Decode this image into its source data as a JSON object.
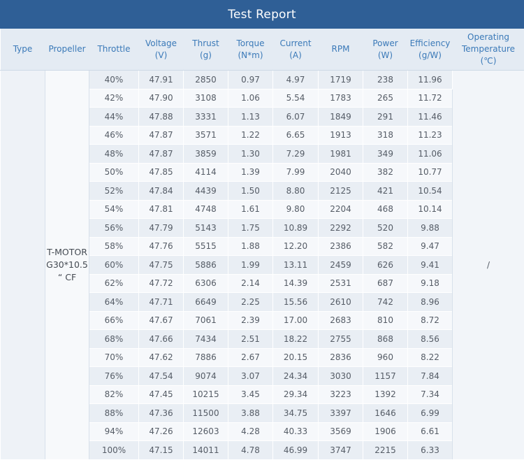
{
  "title": "Test Report",
  "headers": {
    "type": "Type",
    "propeller": "Propeller",
    "throttle": "Throttle",
    "voltage": [
      "Voltage",
      "(V)"
    ],
    "thrust": [
      "Thrust",
      "(g)"
    ],
    "torque": [
      "Torque",
      "(N*m)"
    ],
    "current": [
      "Current",
      "(A)"
    ],
    "rpm": "RPM",
    "power": [
      "Power",
      "(W)"
    ],
    "efficiency": [
      "Efficiency",
      "(g/W)"
    ],
    "temperature": [
      "Operating",
      "Temperature",
      "(℃)"
    ]
  },
  "type_value": "",
  "propeller_value": [
    "T-MOTOR",
    "G30*10.5",
    "“ CF"
  ],
  "temperature_value": "/",
  "rows": [
    [
      "40%",
      "47.91",
      "2850",
      "0.97",
      "4.97",
      "1719",
      "238",
      "11.96"
    ],
    [
      "42%",
      "47.90",
      "3108",
      "1.06",
      "5.54",
      "1783",
      "265",
      "11.72"
    ],
    [
      "44%",
      "47.88",
      "3331",
      "1.13",
      "6.07",
      "1849",
      "291",
      "11.46"
    ],
    [
      "46%",
      "47.87",
      "3571",
      "1.22",
      "6.65",
      "1913",
      "318",
      "11.23"
    ],
    [
      "48%",
      "47.87",
      "3859",
      "1.30",
      "7.29",
      "1981",
      "349",
      "11.06"
    ],
    [
      "50%",
      "47.85",
      "4114",
      "1.39",
      "7.99",
      "2040",
      "382",
      "10.77"
    ],
    [
      "52%",
      "47.84",
      "4439",
      "1.50",
      "8.80",
      "2125",
      "421",
      "10.54"
    ],
    [
      "54%",
      "47.81",
      "4748",
      "1.61",
      "9.80",
      "2204",
      "468",
      "10.14"
    ],
    [
      "56%",
      "47.79",
      "5143",
      "1.75",
      "10.89",
      "2292",
      "520",
      "9.88"
    ],
    [
      "58%",
      "47.76",
      "5515",
      "1.88",
      "12.20",
      "2386",
      "582",
      "9.47"
    ],
    [
      "60%",
      "47.75",
      "5886",
      "1.99",
      "13.11",
      "2459",
      "626",
      "9.41"
    ],
    [
      "62%",
      "47.72",
      "6306",
      "2.14",
      "14.39",
      "2531",
      "687",
      "9.18"
    ],
    [
      "64%",
      "47.71",
      "6649",
      "2.25",
      "15.56",
      "2610",
      "742",
      "8.96"
    ],
    [
      "66%",
      "47.67",
      "7061",
      "2.39",
      "17.00",
      "2683",
      "810",
      "8.72"
    ],
    [
      "68%",
      "47.66",
      "7434",
      "2.51",
      "18.22",
      "2755",
      "868",
      "8.56"
    ],
    [
      "70%",
      "47.62",
      "7886",
      "2.67",
      "20.15",
      "2836",
      "960",
      "8.22"
    ],
    [
      "76%",
      "47.54",
      "9074",
      "3.07",
      "24.34",
      "3030",
      "1157",
      "7.84"
    ],
    [
      "82%",
      "47.45",
      "10215",
      "3.45",
      "29.34",
      "3223",
      "1392",
      "7.34"
    ],
    [
      "88%",
      "47.36",
      "11500",
      "3.88",
      "34.75",
      "3397",
      "1646",
      "6.99"
    ],
    [
      "94%",
      "47.26",
      "12603",
      "4.28",
      "40.33",
      "3569",
      "1906",
      "6.61"
    ],
    [
      "100%",
      "47.15",
      "14011",
      "4.78",
      "46.99",
      "3747",
      "2215",
      "6.33"
    ]
  ]
}
